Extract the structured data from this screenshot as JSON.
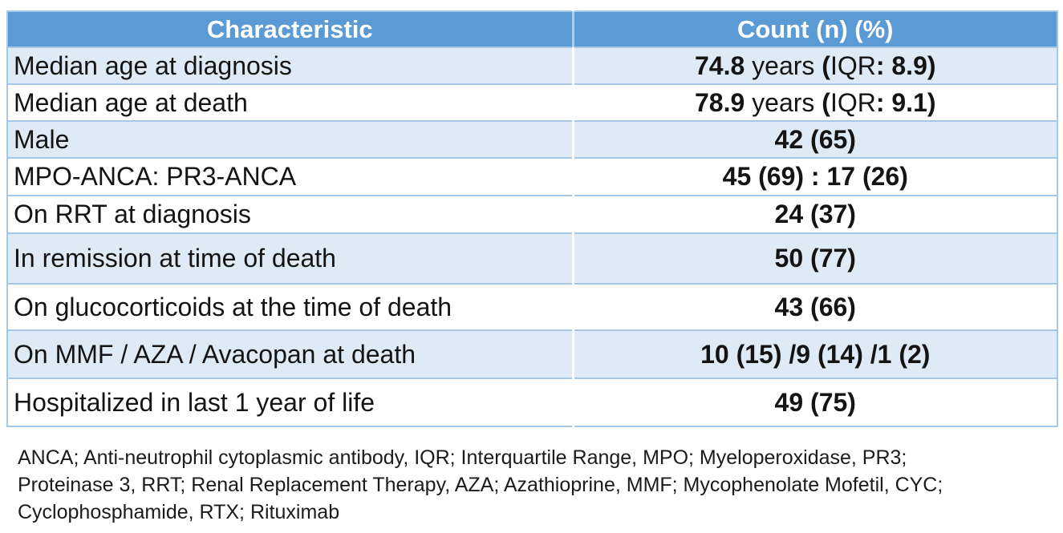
{
  "table": {
    "header": {
      "characteristic": "Characteristic",
      "count": "Count (n) (%)"
    },
    "rows": [
      {
        "characteristic": "Median age at diagnosis",
        "value": "74.8 years (IQR: 8.9)"
      },
      {
        "characteristic": "Median age at death",
        "value": "78.9 years (IQR: 9.1)"
      },
      {
        "characteristic": "Male",
        "value": "42 (65)"
      },
      {
        "characteristic": "MPO-ANCA: PR3-ANCA",
        "value": "45 (69) : 17 (26)"
      },
      {
        "characteristic": "On RRT at diagnosis",
        "value": "24 (37)"
      },
      {
        "characteristic": "In remission at time of death",
        "value": "50 (77)"
      },
      {
        "characteristic": "On glucocorticoids at the time of death",
        "value": "43 (66)"
      },
      {
        "characteristic": "On MMF / AZA / Avacopan at death",
        "value": "10 (15) /9 (14) /1 (2)"
      },
      {
        "characteristic": "Hospitalized in last 1 year of life",
        "value": "49 (75)"
      }
    ]
  },
  "footnote": {
    "lines": [
      "ANCA; Anti-neutrophil cytoplasmic antibody, IQR; Interquartile Range, MPO; Myeloperoxidase, PR3;",
      "Proteinase 3, RRT; Renal Replacement Therapy, AZA; Azathioprine, MMF; Mycophenolate Mofetil, CYC;",
      "Cyclophosphamide, RTX; Rituximab"
    ]
  },
  "colors": {
    "header_bg": "#5B9BD5",
    "tint_row_bg": "#DEEAF6",
    "border": "#A5C8E9",
    "header_text": "#FFFFFF",
    "body_text": "#141414"
  }
}
